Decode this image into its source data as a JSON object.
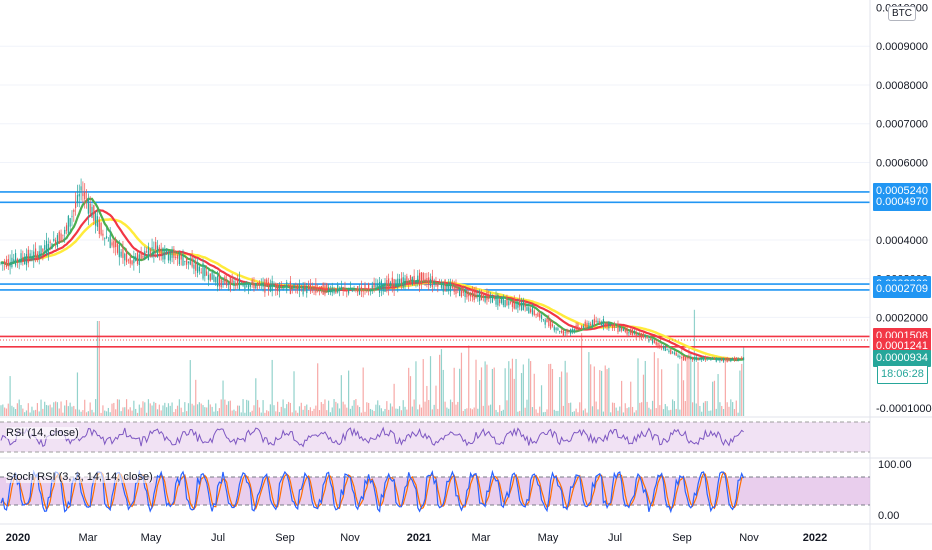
{
  "symbol_badge": "BTC",
  "colors": {
    "up": "#26a69a",
    "down": "#ef5350",
    "ma_fast": "#4caf50",
    "ma_mid": "#f23645",
    "ma_slow": "#ffeb3b",
    "blue_line": "#2196f3",
    "red_line": "#f23645",
    "rsi": "#7e57c2",
    "stoch_k": "#2962ff",
    "stoch_d": "#ff6d00",
    "band_fill": "#e1bee7"
  },
  "price_axis": {
    "ticks": [
      "0.0010000",
      "0.0009000",
      "0.0008000",
      "0.0007000",
      "0.0006000",
      "0.0004000",
      "0.0003000",
      "0.0002000",
      "-0.0001000"
    ],
    "tags": [
      {
        "label": "0.0005240",
        "value": 0.000524,
        "color": "#2196f3"
      },
      {
        "label": "0.0004970",
        "value": 0.000497,
        "color": "#2196f3"
      },
      {
        "label": "0.0002860",
        "value": 0.000286,
        "color": "#2196f3"
      },
      {
        "label": "0.0002709",
        "value": 0.0002709,
        "color": "#2196f3"
      },
      {
        "label": "0.0001508",
        "value": 0.0001508,
        "color": "#f23645"
      },
      {
        "label": "0.0001241",
        "value": 0.0001241,
        "color": "#f23645"
      },
      {
        "label": "0.0000934",
        "value": 9.34e-05,
        "color": "#26a69a"
      }
    ],
    "countdown": "18:06:28"
  },
  "time_axis": {
    "labels": [
      {
        "text": "2020",
        "bold": true
      },
      {
        "text": "Mar",
        "bold": false
      },
      {
        "text": "May",
        "bold": false
      },
      {
        "text": "Jul",
        "bold": false
      },
      {
        "text": "Sep",
        "bold": false
      },
      {
        "text": "Nov",
        "bold": false
      },
      {
        "text": "2021",
        "bold": true
      },
      {
        "text": "Mar",
        "bold": false
      },
      {
        "text": "May",
        "bold": false
      },
      {
        "text": "Jul",
        "bold": false
      },
      {
        "text": "Sep",
        "bold": false
      },
      {
        "text": "Nov",
        "bold": false
      },
      {
        "text": "2022",
        "bold": true
      }
    ]
  },
  "rsi_pane": {
    "label": "RSI (14, close)"
  },
  "stoch_pane": {
    "label": "Stoch RSI (3, 3, 14, 14, close)",
    "ticks": [
      "100.00",
      "0.00"
    ]
  },
  "chart_data": {
    "type": "line",
    "x_start": "2020-01",
    "price_key_points": [
      {
        "date": "2020-01-01",
        "value": 0.00034
      },
      {
        "date": "2020-01-20",
        "value": 0.00036
      },
      {
        "date": "2020-02-05",
        "value": 0.00042
      },
      {
        "date": "2020-02-14",
        "value": 0.00053
      },
      {
        "date": "2020-02-25",
        "value": 0.00042
      },
      {
        "date": "2020-03-12",
        "value": 0.00034
      },
      {
        "date": "2020-03-25",
        "value": 0.00038
      },
      {
        "date": "2020-04-10",
        "value": 0.00035
      },
      {
        "date": "2020-05-01",
        "value": 0.00029
      },
      {
        "date": "2020-06-15",
        "value": 0.000275
      },
      {
        "date": "2020-07-15",
        "value": 0.00027
      },
      {
        "date": "2020-08-20",
        "value": 0.0003
      },
      {
        "date": "2020-09-15",
        "value": 0.00026
      },
      {
        "date": "2020-10-15",
        "value": 0.00023
      },
      {
        "date": "2020-11-05",
        "value": 0.00016
      },
      {
        "date": "2020-11-25",
        "value": 0.00019
      },
      {
        "date": "2020-12-20",
        "value": 0.00015
      },
      {
        "date": "2021-01-10",
        "value": 9.5e-05
      },
      {
        "date": "2021-02-05",
        "value": 9e-05
      },
      {
        "date": "2021-02-13",
        "value": 9.34e-05
      }
    ],
    "horizontal_levels": [
      0.000524,
      0.000497,
      0.000286,
      0.0002709,
      0.0001508,
      0.0001241
    ],
    "last_price": 9.34e-05,
    "series": [
      {
        "indicator": "price"
      },
      {
        "indicator": "ma_fast"
      },
      {
        "indicator": "ma_mid"
      },
      {
        "indicator": "ma_slow"
      }
    ],
    "rsi_range": [
      0,
      100
    ],
    "stoch_range": [
      0,
      100
    ]
  }
}
